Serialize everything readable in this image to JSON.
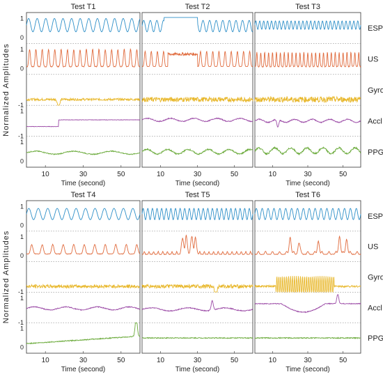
{
  "chart_data": {
    "type": "line",
    "ylabel": "Normalized Amplitudes",
    "xlabel": "Time (second)",
    "x_range": [
      0,
      60
    ],
    "x_ticks": [
      "10",
      "30",
      "50"
    ],
    "x_tick_values": [
      10,
      30,
      50
    ],
    "signals": [
      {
        "name": "ESP",
        "color": "#2d8fc8",
        "y_ticks": [
          {
            "label": "1",
            "v": 1
          },
          {
            "label": "0",
            "v": 0
          }
        ]
      },
      {
        "name": "US",
        "color": "#e06a3c",
        "y_ticks": [
          {
            "label": "1",
            "v": 1
          },
          {
            "label": "0",
            "v": 0
          }
        ]
      },
      {
        "name": "Gyro",
        "color": "#e8b72a",
        "y_ticks": [
          {
            "label": "-1",
            "v": -1
          }
        ]
      },
      {
        "name": "Accl",
        "color": "#9b4aa6",
        "y_ticks": [
          {
            "label": "1",
            "v": 1
          },
          {
            "label": "-1",
            "v": -1
          }
        ]
      },
      {
        "name": "PPG",
        "color": "#6aaa3a",
        "y_ticks": [
          {
            "label": "1",
            "v": 1
          },
          {
            "label": "0",
            "v": 0
          }
        ]
      }
    ],
    "grid": "dotted horizontal separators between channels",
    "panels": [
      {
        "title": "Test T1",
        "series": [
          {
            "signal": "ESP",
            "mode": "sine",
            "freq": 0.22,
            "amp": 0.35,
            "mid": 0.65
          },
          {
            "signal": "US",
            "mode": "spikes",
            "freq": 0.3,
            "amp": 0.9,
            "mid": 0.1
          },
          {
            "signal": "Gyro",
            "mode": "noise",
            "amp": 0.12,
            "mid": 0.0,
            "events": [
              {
                "x": 17,
                "h": -0.5
              }
            ]
          },
          {
            "signal": "Accl",
            "mode": "step",
            "mid": 0.2,
            "step_at": 17,
            "step_to": 0.55
          },
          {
            "signal": "PPG",
            "mode": "wave",
            "freq": 0.05,
            "amp": 0.08,
            "mid": 0.45
          }
        ]
      },
      {
        "title": "Test T2",
        "series": [
          {
            "signal": "ESP",
            "mode": "plateau",
            "freq": 0.28,
            "amp": 0.3,
            "mid": 0.6,
            "plateau": [
              12,
              30
            ],
            "plateau_level": 1.05
          },
          {
            "signal": "US",
            "mode": "plateau_spikes",
            "freq": 0.3,
            "amp": 0.8,
            "mid": 0.1,
            "plateau": [
              14,
              30
            ],
            "plateau_level": 0.75
          },
          {
            "signal": "Gyro",
            "mode": "noise",
            "amp": 0.25,
            "mid": 0.0
          },
          {
            "signal": "Accl",
            "mode": "wave",
            "freq": 0.08,
            "amp": 0.08,
            "mid": 0.55
          },
          {
            "signal": "PPG",
            "mode": "wave",
            "freq": 0.09,
            "amp": 0.12,
            "mid": 0.5
          }
        ]
      },
      {
        "title": "Test T3",
        "series": [
          {
            "signal": "ESP",
            "mode": "sine",
            "freq": 0.45,
            "amp": 0.22,
            "mid": 0.65
          },
          {
            "signal": "US",
            "mode": "spikes",
            "freq": 0.45,
            "amp": 0.75,
            "mid": 0.1
          },
          {
            "signal": "Gyro",
            "mode": "noise",
            "amp": 0.3,
            "mid": 0.0
          },
          {
            "signal": "Accl",
            "mode": "wave",
            "freq": 0.1,
            "amp": 0.08,
            "mid": 0.5,
            "events": [
              {
                "x": 13,
                "h": -0.4
              }
            ]
          },
          {
            "signal": "PPG",
            "mode": "wave",
            "freq": 0.11,
            "amp": 0.15,
            "mid": 0.55
          }
        ]
      },
      {
        "title": "Test T4",
        "series": [
          {
            "signal": "ESP",
            "mode": "sine",
            "freq": 0.2,
            "amp": 0.3,
            "mid": 0.6
          },
          {
            "signal": "US",
            "mode": "bursts",
            "freq": 0.18,
            "amp": 0.5,
            "mid": 0.1
          },
          {
            "signal": "Gyro",
            "mode": "noise",
            "amp": 0.18,
            "mid": 0.0
          },
          {
            "signal": "Accl",
            "mode": "wave",
            "freq": 0.06,
            "amp": 0.08,
            "mid": 0.45
          },
          {
            "signal": "PPG",
            "mode": "drift",
            "mid": 0.2,
            "end": 0.6,
            "events": [
              {
                "x": 58,
                "h": 1.0
              }
            ]
          }
        ]
      },
      {
        "title": "Test T5",
        "series": [
          {
            "signal": "ESP",
            "mode": "sine",
            "freq": 0.4,
            "amp": 0.3,
            "mid": 0.6
          },
          {
            "signal": "US",
            "mode": "bursts",
            "freq": 0.4,
            "amp": 0.15,
            "mid": 0.08,
            "events": [
              {
                "x": 22,
                "h": 0.85
              },
              {
                "x": 24,
                "h": 0.9
              },
              {
                "x": 27,
                "h": 0.95
              },
              {
                "x": 29,
                "h": 0.8
              }
            ]
          },
          {
            "signal": "Gyro",
            "mode": "noise",
            "amp": 0.2,
            "mid": 0.0,
            "events": [
              {
                "x": 40,
                "h": -0.6
              }
            ]
          },
          {
            "signal": "Accl",
            "mode": "wave",
            "freq": 0.05,
            "amp": 0.08,
            "mid": 0.4,
            "events": [
              {
                "x": 38,
                "h": 0.5
              }
            ]
          },
          {
            "signal": "PPG",
            "mode": "flat",
            "mid": 0.5
          }
        ]
      },
      {
        "title": "Test T6",
        "series": [
          {
            "signal": "ESP",
            "mode": "sine",
            "freq": 0.3,
            "amp": 0.3,
            "mid": 0.6
          },
          {
            "signal": "US",
            "mode": "bursts",
            "freq": 0.25,
            "amp": 0.15,
            "mid": 0.08,
            "events": [
              {
                "x": 20,
                "h": 0.9
              },
              {
                "x": 25,
                "h": 0.6
              },
              {
                "x": 36,
                "h": 0.7
              },
              {
                "x": 48,
                "h": 0.95
              },
              {
                "x": 52,
                "h": 0.8
              }
            ]
          },
          {
            "signal": "Gyro",
            "mode": "burst_noise",
            "amp": 0.1,
            "mid": 0.0,
            "burst": [
              12,
              45
            ],
            "burst_amp": 0.55
          },
          {
            "signal": "Accl",
            "mode": "dip",
            "mid": 0.7,
            "dip": [
              15,
              40
            ],
            "dip_depth": 0.45,
            "events": [
              {
                "x": 47,
                "h": 0.5
              }
            ]
          },
          {
            "signal": "PPG",
            "mode": "flat",
            "mid": 0.5
          }
        ]
      }
    ]
  }
}
